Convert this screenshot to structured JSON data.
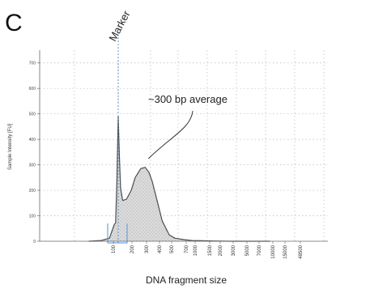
{
  "panel_label": "C",
  "chart_data": {
    "type": "area",
    "title": "",
    "xlabel": "DNA fragment size",
    "ylabel": "Sample Intensity [FU]",
    "ylim": [
      0,
      750
    ],
    "yticks": [
      0,
      100,
      200,
      300,
      400,
      500,
      600,
      700
    ],
    "x_scale": "log",
    "xticks": [
      "100",
      "200",
      "300",
      "400",
      "500",
      "700",
      "1000",
      "1500",
      "2000",
      "3000",
      "5000",
      "7000",
      "10000",
      "15000",
      "48500"
    ],
    "grid": true,
    "series": [
      {
        "x": [
          30,
          50,
          70,
          85,
          90,
          95,
          100,
          105,
          110,
          120,
          140,
          170,
          200,
          250,
          300,
          350,
          400,
          500,
          600,
          800,
          1000,
          1500,
          2000,
          3000,
          5000,
          10000,
          48500
        ],
        "y": [
          0,
          3,
          12,
          65,
          72,
          240,
          490,
          330,
          210,
          160,
          165,
          200,
          250,
          285,
          290,
          270,
          235,
          150,
          80,
          25,
          12,
          6,
          3,
          2,
          1,
          0,
          0
        ]
      }
    ],
    "marker": {
      "label": "Marker",
      "x": 100
    },
    "annotations": [
      {
        "text": "~300 bp average",
        "points_to_x": 300
      }
    ],
    "colors": {
      "fill": "#d7d7d7",
      "line": "#4d4d4d",
      "marker": "#4a90d9"
    }
  }
}
